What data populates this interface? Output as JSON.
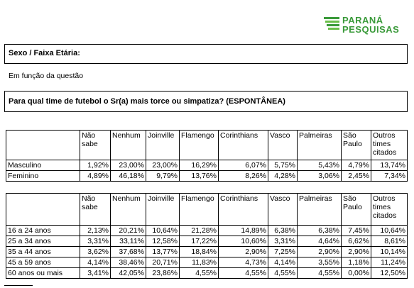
{
  "header": {
    "logo_line1": "PARANÁ",
    "logo_line2": "PESQUISAS"
  },
  "section": {
    "title": "Sexo / Faixa Etária:",
    "subtitle": "Em função da questão",
    "question": "Para qual time de futebol o Sr(a) mais torce ou simpatiza? (ESPONTÂNEA)"
  },
  "tables": [
    {
      "headers": [
        "Não sabe",
        "Nenhum",
        "Joinville",
        "Flamengo",
        "Corinthians",
        "Vasco",
        "Palmeiras",
        "São Paulo",
        "Outros times citados"
      ],
      "rows": [
        {
          "label": "Masculino",
          "cells": [
            "1,92%",
            "23,00%",
            "23,00%",
            "16,29%",
            "6,07%",
            "5,75%",
            "5,43%",
            "4,79%",
            "13,74%"
          ]
        },
        {
          "label": "Feminino",
          "cells": [
            "4,89%",
            "46,18%",
            "9,79%",
            "13,76%",
            "8,26%",
            "4,28%",
            "3,06%",
            "2,45%",
            "7,34%"
          ]
        }
      ]
    },
    {
      "headers": [
        "Não sabe",
        "Nenhum",
        "Joinville",
        "Flamengo",
        "Corinthians",
        "Vasco",
        "Palmeiras",
        "São Paulo",
        "Outros times citados"
      ],
      "rows": [
        {
          "label": "16 a 24 anos",
          "cells": [
            "2,13%",
            "20,21%",
            "10,64%",
            "21,28%",
            "14,89%",
            "6,38%",
            "6,38%",
            "7,45%",
            "10,64%"
          ]
        },
        {
          "label": "25 a 34 anos",
          "cells": [
            "3,31%",
            "33,11%",
            "12,58%",
            "17,22%",
            "10,60%",
            "3,31%",
            "4,64%",
            "6,62%",
            "8,61%"
          ]
        },
        {
          "label": "35 a 44 anos",
          "cells": [
            "3,62%",
            "37,68%",
            "13,77%",
            "18,84%",
            "2,90%",
            "7,25%",
            "2,90%",
            "2,90%",
            "10,14%"
          ]
        },
        {
          "label": "45 a 59 anos",
          "cells": [
            "4,14%",
            "38,46%",
            "20,71%",
            "11,83%",
            "4,73%",
            "4,14%",
            "3,55%",
            "1,18%",
            "11,24%"
          ]
        },
        {
          "label": "60 anos ou mais",
          "cells": [
            "3,41%",
            "42,05%",
            "23,86%",
            "4,55%",
            "4,55%",
            "4,55%",
            "4,55%",
            "0,00%",
            "12,50%"
          ]
        }
      ]
    }
  ]
}
